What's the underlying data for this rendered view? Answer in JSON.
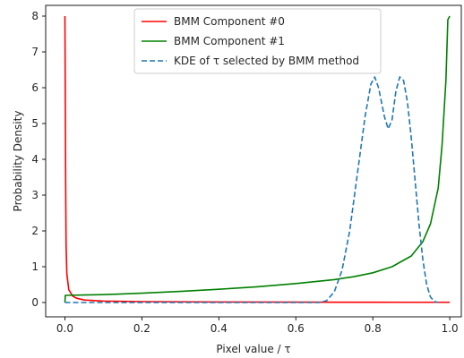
{
  "chart_data": {
    "type": "line",
    "title": "",
    "xlabel": "Pixel value / τ",
    "ylabel": "Probability Density",
    "xlim": [
      -0.05,
      1.03
    ],
    "ylim": [
      -0.4,
      8.3
    ],
    "xticks": [
      0.0,
      0.2,
      0.4,
      0.6,
      0.8,
      1.0
    ],
    "xtick_labels": [
      "0.0",
      "0.2",
      "0.4",
      "0.6",
      "0.8",
      "1.0"
    ],
    "yticks": [
      0,
      1,
      2,
      3,
      4,
      5,
      6,
      7,
      8
    ],
    "ytick_labels": [
      "0",
      "1",
      "2",
      "3",
      "4",
      "5",
      "6",
      "7",
      "8"
    ],
    "grid": false,
    "legend_position": "upper-center",
    "series": [
      {
        "name": "BMM Component #0",
        "color": "#ff0000",
        "style": "solid",
        "points": [
          [
            0.0,
            8.0
          ],
          [
            0.001,
            5.6
          ],
          [
            0.002,
            3.2
          ],
          [
            0.003,
            1.6
          ],
          [
            0.005,
            0.8
          ],
          [
            0.01,
            0.36
          ],
          [
            0.02,
            0.18
          ],
          [
            0.03,
            0.12
          ],
          [
            0.05,
            0.07
          ],
          [
            0.1,
            0.04
          ],
          [
            0.2,
            0.025
          ],
          [
            0.4,
            0.015
          ],
          [
            0.6,
            0.01
          ],
          [
            0.8,
            0.008
          ],
          [
            0.9,
            0.006
          ],
          [
            1.0,
            0.006
          ]
        ]
      },
      {
        "name": "BMM Component #1",
        "color": "#008000",
        "style": "solid",
        "points": [
          [
            0.0,
            0.0
          ],
          [
            0.001,
            0.2
          ],
          [
            0.05,
            0.21
          ],
          [
            0.1,
            0.22
          ],
          [
            0.2,
            0.26
          ],
          [
            0.3,
            0.31
          ],
          [
            0.4,
            0.37
          ],
          [
            0.5,
            0.44
          ],
          [
            0.6,
            0.53
          ],
          [
            0.7,
            0.64
          ],
          [
            0.75,
            0.72
          ],
          [
            0.8,
            0.83
          ],
          [
            0.85,
            1.0
          ],
          [
            0.9,
            1.3
          ],
          [
            0.93,
            1.7
          ],
          [
            0.95,
            2.2
          ],
          [
            0.97,
            3.2
          ],
          [
            0.98,
            4.4
          ],
          [
            0.99,
            6.2
          ],
          [
            0.995,
            7.9
          ],
          [
            1.0,
            8.0
          ]
        ]
      },
      {
        "name": "KDE of τ selected by BMM method",
        "color": "#1f77b4",
        "style": "dashed",
        "points": [
          [
            0.0,
            0.0
          ],
          [
            0.66,
            0.0
          ],
          [
            0.68,
            0.05
          ],
          [
            0.7,
            0.3
          ],
          [
            0.72,
            0.9
          ],
          [
            0.74,
            2.0
          ],
          [
            0.76,
            3.6
          ],
          [
            0.78,
            5.2
          ],
          [
            0.795,
            6.1
          ],
          [
            0.805,
            6.3
          ],
          [
            0.815,
            6.0
          ],
          [
            0.83,
            5.2
          ],
          [
            0.84,
            4.85
          ],
          [
            0.85,
            5.1
          ],
          [
            0.86,
            5.9
          ],
          [
            0.87,
            6.3
          ],
          [
            0.88,
            6.2
          ],
          [
            0.89,
            5.6
          ],
          [
            0.9,
            4.6
          ],
          [
            0.91,
            3.4
          ],
          [
            0.92,
            2.2
          ],
          [
            0.93,
            1.2
          ],
          [
            0.94,
            0.5
          ],
          [
            0.95,
            0.15
          ],
          [
            0.96,
            0.03
          ],
          [
            0.97,
            0.0
          ]
        ]
      }
    ]
  }
}
